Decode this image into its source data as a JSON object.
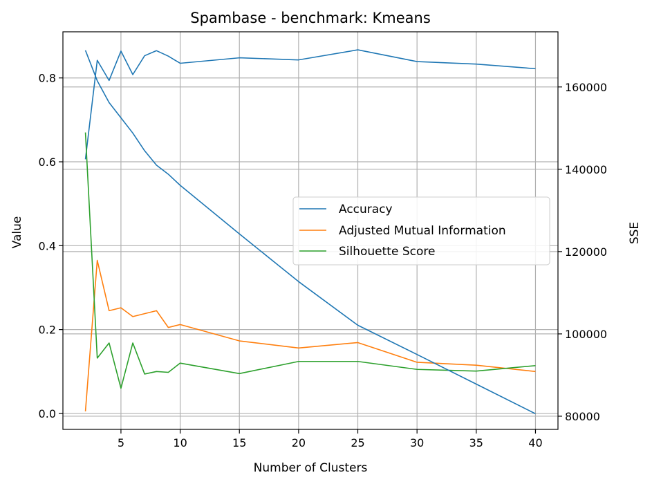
{
  "chart_data": {
    "type": "line",
    "title": "Spambase - benchmark: Kmeans",
    "xlabel": "Number of Clusters",
    "ylabel": "Value",
    "y2label": "SSE",
    "grid": true,
    "legend_placement": "center-right",
    "xlim": [
      0.1,
      41.9
    ],
    "ylim": [
      -0.038,
      0.91
    ],
    "y2lim": [
      76800,
      173400
    ],
    "xticks": [
      5,
      10,
      15,
      20,
      25,
      30,
      35,
      40
    ],
    "yticks": [
      0.0,
      0.2,
      0.4,
      0.6,
      0.8
    ],
    "yticklabels": [
      "0.0",
      "0.2",
      "0.4",
      "0.6",
      "0.8"
    ],
    "y2ticks": [
      80000,
      100000,
      120000,
      140000,
      160000
    ],
    "x": [
      2,
      3,
      4,
      5,
      6,
      7,
      8,
      9,
      10,
      15,
      20,
      25,
      30,
      35,
      40
    ],
    "series": [
      {
        "name": "Accuracy",
        "axis": "left",
        "color": "#1f77b4",
        "values": [
          0.606,
          0.842,
          0.794,
          0.864,
          0.808,
          0.853,
          0.865,
          0.852,
          0.835,
          0.848,
          0.843,
          0.867,
          0.839,
          0.833,
          0.822
        ]
      },
      {
        "name": "Adjusted Mutual Information",
        "axis": "left",
        "color": "#ff7f0e",
        "values": [
          0.005,
          0.365,
          0.245,
          0.252,
          0.231,
          0.238,
          0.245,
          0.205,
          0.212,
          0.173,
          0.156,
          0.169,
          0.122,
          0.115,
          0.1
        ]
      },
      {
        "name": "Silhouette Score",
        "axis": "left",
        "color": "#2ca02c",
        "values": [
          0.67,
          0.132,
          0.168,
          0.06,
          0.168,
          0.094,
          0.1,
          0.098,
          0.12,
          0.095,
          0.124,
          0.124,
          0.105,
          0.101,
          0.114
        ]
      },
      {
        "name": "",
        "axis": "right",
        "color": "#1f77b4",
        "values": [
          168900,
          161500,
          156200,
          152500,
          148800,
          144500,
          141000,
          138800,
          136100,
          124300,
          112700,
          102100,
          95000,
          87800,
          80600
        ]
      }
    ]
  }
}
